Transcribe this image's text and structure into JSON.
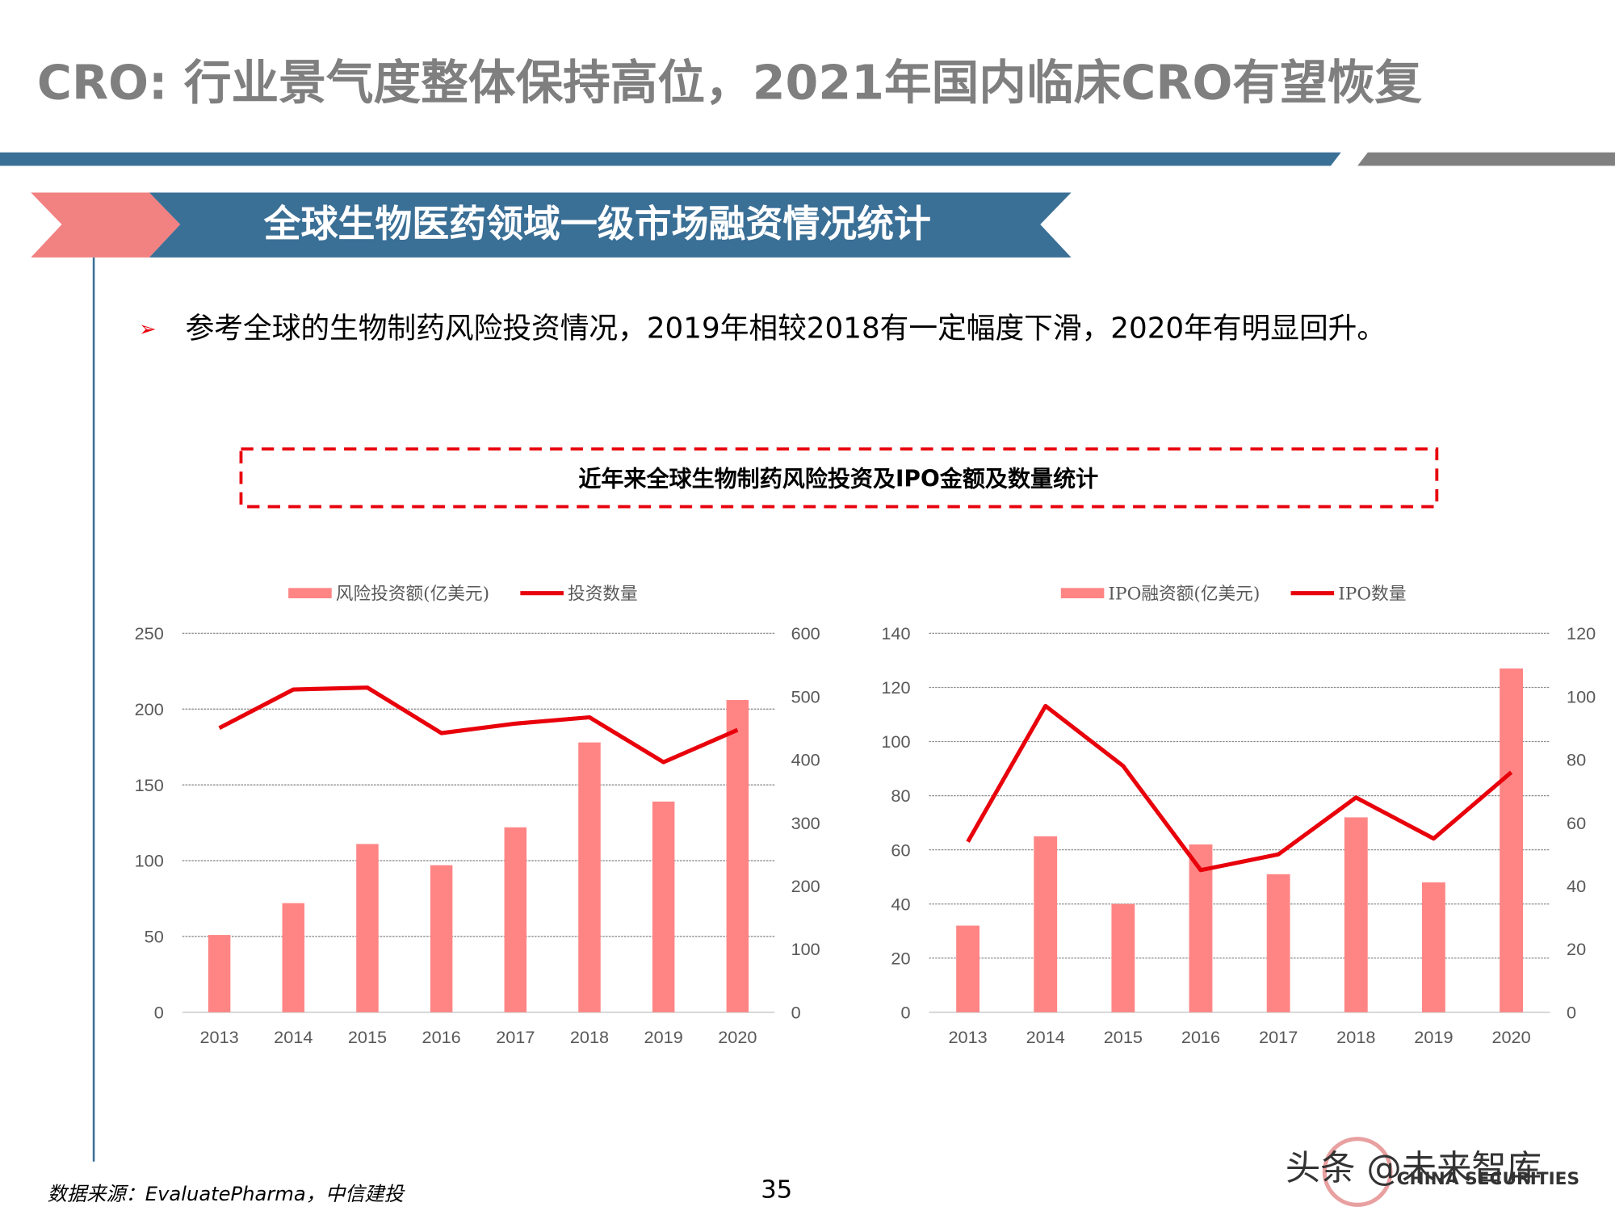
{
  "title": "CRO: 行业景气度整体保持高位，2021年国内临床CRO有望恢复",
  "section": "全球生物医药领域一级市场融资情况统计",
  "bullet": "参考全球的生物制药风险投资情况，2019年相较2018有一定幅度下滑，2020年有明显回升。",
  "chart_group_title": "近年来全球生物制药风险投资及IPO金额及数量统计",
  "source": "数据来源：EvaluatePharma，中信建投",
  "page_number": "35",
  "watermark": "头条 @未来智库",
  "logo_text": "CHINA SECURITIES",
  "chart_data": [
    {
      "type": "bar-line",
      "categories": [
        "2013",
        "2014",
        "2015",
        "2016",
        "2017",
        "2018",
        "2019",
        "2020"
      ],
      "series": [
        {
          "name": "风险投资额(亿美元)",
          "type": "bar",
          "color": "#ff8585",
          "values": [
            51,
            72,
            111,
            97,
            122,
            178,
            139,
            206
          ]
        },
        {
          "name": "投资数量",
          "type": "line",
          "axis": "y2",
          "color": "#e8000b",
          "values": [
            450,
            511,
            514,
            442,
            457,
            467,
            396,
            447
          ]
        }
      ],
      "ylim": [
        0,
        250
      ],
      "yticks": [
        0,
        50,
        100,
        150,
        200,
        250
      ],
      "y2lim": [
        0,
        600
      ],
      "y2ticks": [
        0,
        100,
        200,
        300,
        400,
        500,
        600
      ],
      "grid": true,
      "legend": "top"
    },
    {
      "type": "bar-line",
      "categories": [
        "2013",
        "2014",
        "2015",
        "2016",
        "2017",
        "2018",
        "2019",
        "2020"
      ],
      "series": [
        {
          "name": "IPO融资额(亿美元)",
          "type": "bar",
          "color": "#ff8585",
          "values": [
            32,
            65,
            40,
            62,
            51,
            72,
            48,
            127
          ]
        },
        {
          "name": "IPO数量",
          "type": "line",
          "axis": "y2",
          "color": "#e8000b",
          "values": [
            54,
            97,
            78,
            45,
            50,
            68,
            55,
            76
          ]
        }
      ],
      "ylim": [
        0,
        140
      ],
      "yticks": [
        0,
        20,
        40,
        60,
        80,
        100,
        120,
        140
      ],
      "y2lim": [
        0,
        120
      ],
      "y2ticks": [
        0,
        20,
        40,
        60,
        80,
        100,
        120
      ],
      "grid": true,
      "legend": "top"
    }
  ]
}
